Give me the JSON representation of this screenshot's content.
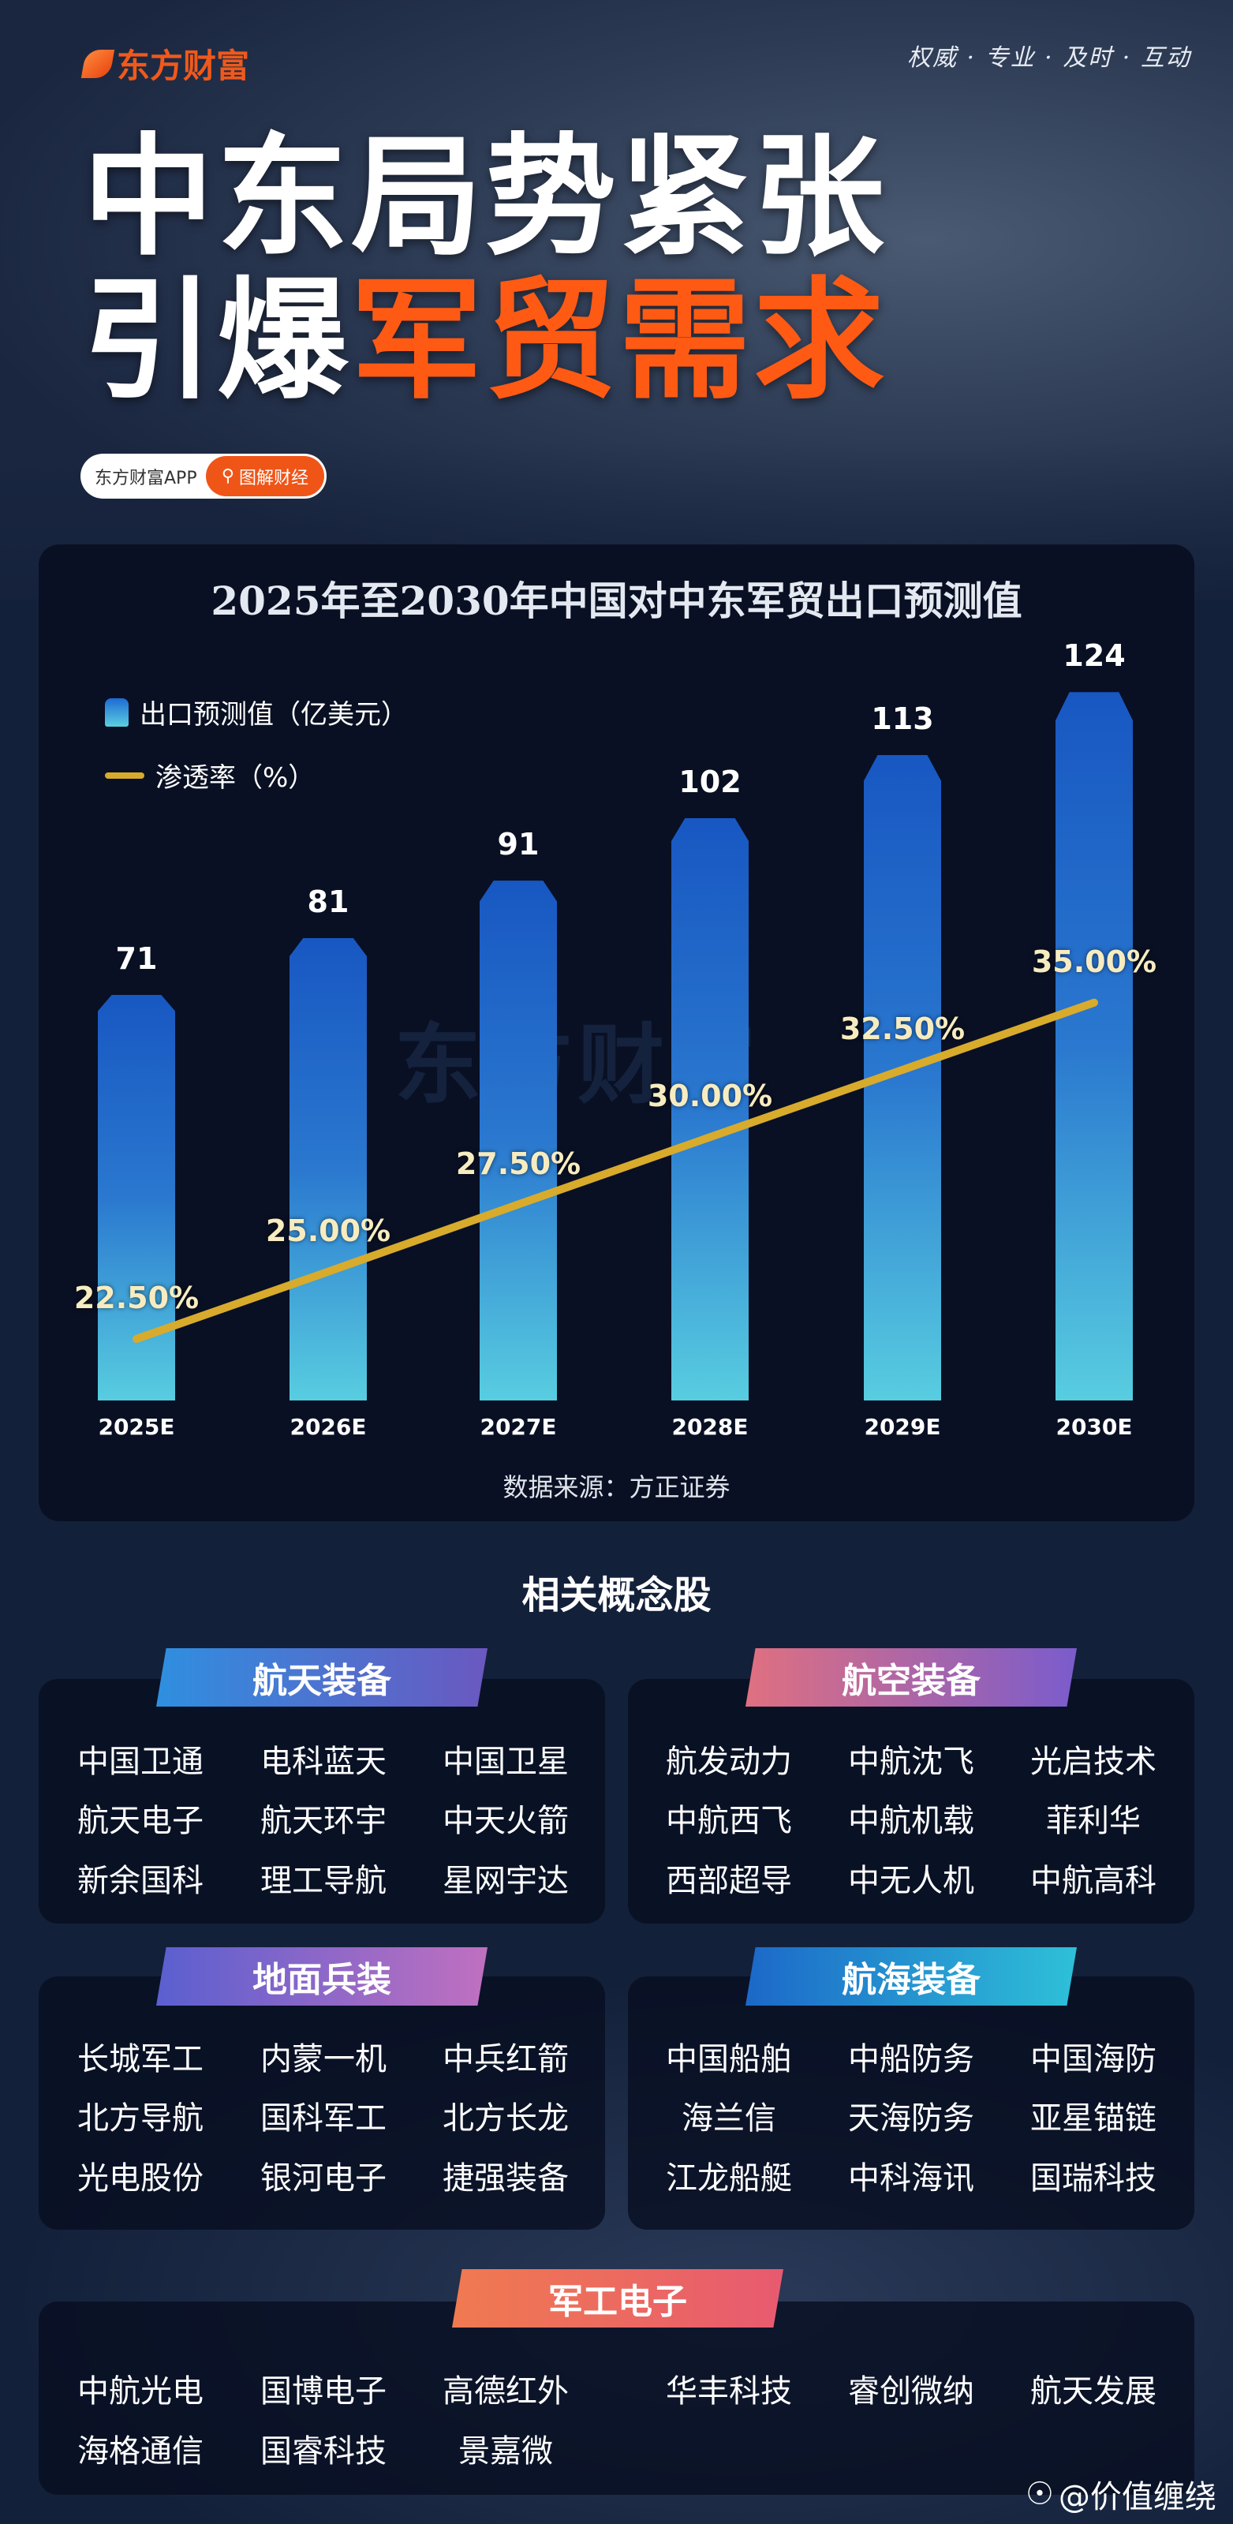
{
  "header": {
    "logo": "东方财富",
    "slogan": "权威 · 专业 · 及时 · 互动",
    "title_line1": "中东局势紧张",
    "title_line2_white": "引爆",
    "title_line2_orange": "军贸需求",
    "pill_app": "东方财富APP",
    "pill_search": "图解财经",
    "search_icon": "search-icon"
  },
  "colors": {
    "accent_orange": "#ff5a14",
    "line_gold": "#d8ab2c",
    "background": "#13203a"
  },
  "chart_data": {
    "type": "bar+line",
    "title": "2025年至2030年中国对中东军贸出口预测值",
    "categories": [
      "2025E",
      "2026E",
      "2027E",
      "2028E",
      "2029E",
      "2030E"
    ],
    "series": [
      {
        "name": "出口预测值（亿美元）",
        "type": "bar",
        "values": [
          71,
          81,
          91,
          102,
          113,
          124
        ],
        "labels": [
          "71",
          "81",
          "91",
          "102",
          "113",
          "124"
        ]
      },
      {
        "name": "渗透率（%）",
        "type": "line",
        "values": [
          22.5,
          25.0,
          27.5,
          30.0,
          32.5,
          35.0
        ],
        "labels": [
          "22.50%",
          "25.00%",
          "27.50%",
          "30.00%",
          "32.50%",
          "35.00%"
        ]
      }
    ],
    "legend": "top-left",
    "grid": false,
    "source": "数据来源：方正证券",
    "watermark": "东方财富"
  },
  "concepts": {
    "title": "相关概念股",
    "groups": [
      {
        "name": "航天装备",
        "stocks": [
          "中国卫通",
          "电科蓝天",
          "中国卫星",
          "航天电子",
          "航天环宇",
          "中天火箭",
          "新余国科",
          "理工导航",
          "星网宇达"
        ]
      },
      {
        "name": "航空装备",
        "stocks": [
          "航发动力",
          "中航沈飞",
          "光启技术",
          "中航西飞",
          "中航机载",
          "菲利华",
          "西部超导",
          "中无人机",
          "中航高科"
        ]
      },
      {
        "name": "地面兵装",
        "stocks": [
          "长城军工",
          "内蒙一机",
          "中兵红箭",
          "北方导航",
          "国科军工",
          "北方长龙",
          "光电股份",
          "银河电子",
          "捷强装备"
        ]
      },
      {
        "name": "航海装备",
        "stocks": [
          "中国船舶",
          "中船防务",
          "中国海防",
          "海兰信",
          "天海防务",
          "亚星锚链",
          "江龙船艇",
          "中科海讯",
          "国瑞科技"
        ]
      },
      {
        "name": "军工电子",
        "stocks": [
          "中航光电",
          "国博电子",
          "高德红外",
          "华丰科技",
          "睿创微纳",
          "航天发展",
          "海格通信",
          "国睿科技",
          "景嘉微"
        ]
      }
    ]
  },
  "footer": {
    "weibo": "@价值缠绕"
  }
}
